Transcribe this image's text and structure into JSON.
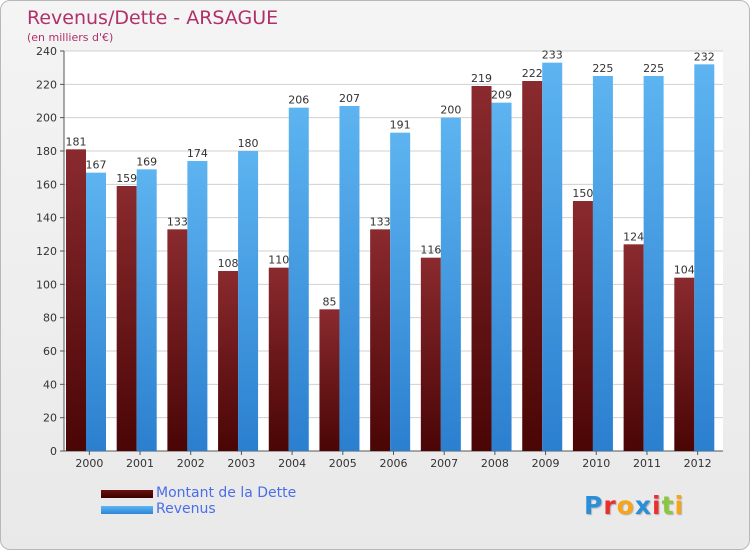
{
  "header": {
    "title": "Revenus/Dette - ARSAGUE",
    "subtitle": "(en milliers d'€)"
  },
  "chart_data": {
    "type": "bar",
    "categories": [
      "2000",
      "2001",
      "2002",
      "2003",
      "2004",
      "2005",
      "2006",
      "2007",
      "2008",
      "2009",
      "2010",
      "2011",
      "2012"
    ],
    "series": [
      {
        "name": "Montant de la Dette",
        "values": [
          181,
          159,
          133,
          108,
          110,
          85,
          133,
          116,
          219,
          222,
          150,
          124,
          104
        ],
        "color": "#7a1a1a"
      },
      {
        "name": "Revenus",
        "values": [
          167,
          169,
          174,
          180,
          206,
          207,
          191,
          200,
          209,
          233,
          225,
          225,
          232
        ],
        "color": "#3d9be5"
      }
    ],
    "yticks": [
      0,
      20,
      40,
      60,
      80,
      100,
      120,
      140,
      160,
      180,
      200,
      220,
      240
    ],
    "ylim": [
      0,
      240
    ],
    "grid": true,
    "legend": "bottom-left"
  },
  "logo": {
    "letters": [
      "P",
      "r",
      "o",
      "x",
      "i",
      "t",
      "i"
    ],
    "colors": [
      "#2a8fd8",
      "#e8312f",
      "#f7a416",
      "#2a8fd8",
      "#e8312f",
      "#8cc63f",
      "#f7a416"
    ]
  }
}
